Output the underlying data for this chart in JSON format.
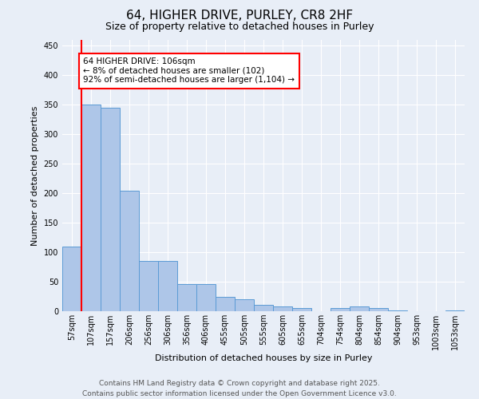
{
  "title1": "64, HIGHER DRIVE, PURLEY, CR8 2HF",
  "title2": "Size of property relative to detached houses in Purley",
  "xlabel": "Distribution of detached houses by size in Purley",
  "ylabel": "Number of detached properties",
  "categories": [
    "57sqm",
    "107sqm",
    "157sqm",
    "206sqm",
    "256sqm",
    "306sqm",
    "356sqm",
    "406sqm",
    "455sqm",
    "505sqm",
    "555sqm",
    "605sqm",
    "655sqm",
    "704sqm",
    "754sqm",
    "804sqm",
    "854sqm",
    "904sqm",
    "953sqm",
    "1003sqm",
    "1053sqm"
  ],
  "values": [
    110,
    350,
    345,
    204,
    85,
    85,
    46,
    46,
    25,
    20,
    11,
    8,
    6,
    0,
    6,
    8,
    5,
    1,
    0,
    0,
    1
  ],
  "bar_color": "#aec6e8",
  "bar_edge_color": "#5b9bd5",
  "vline_color": "red",
  "annotation_text": "64 HIGHER DRIVE: 106sqm\n← 8% of detached houses are smaller (102)\n92% of semi-detached houses are larger (1,104) →",
  "annotation_box_color": "white",
  "annotation_box_edge_color": "red",
  "ylim": [
    0,
    460
  ],
  "yticks": [
    0,
    50,
    100,
    150,
    200,
    250,
    300,
    350,
    400,
    450
  ],
  "background_color": "#e8eef7",
  "footer1": "Contains HM Land Registry data © Crown copyright and database right 2025.",
  "footer2": "Contains public sector information licensed under the Open Government Licence v3.0.",
  "title_fontsize": 11,
  "subtitle_fontsize": 9,
  "tick_fontsize": 7,
  "ylabel_fontsize": 8,
  "xlabel_fontsize": 8,
  "footer_fontsize": 6.5,
  "annotation_fontsize": 7.5
}
